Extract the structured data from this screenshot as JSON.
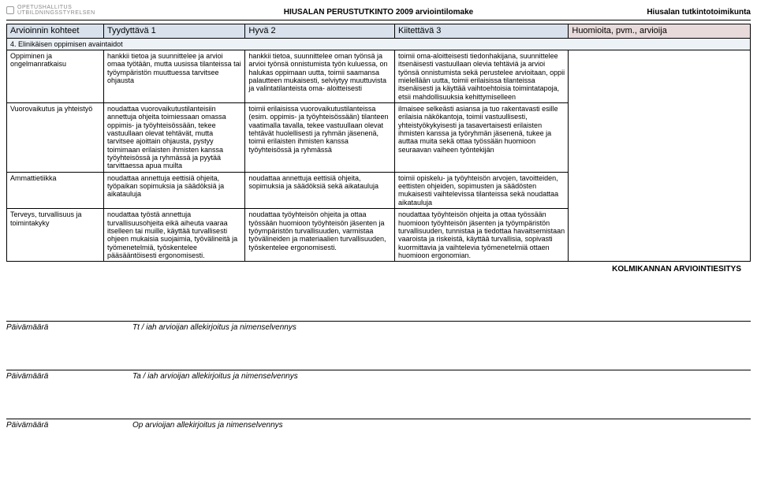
{
  "header": {
    "org1": "OPETUSHALLITUS",
    "org2": "UTBILDNINGSSTYRELSEN",
    "center": "HIUSALAN PERUSTUTKINTO 2009 arviointilomake",
    "right": "Hiusalan tutkintotoimikunta"
  },
  "columns": {
    "label": "Arvioinnin kohteet",
    "c1": "Tyydyttävä 1",
    "c2": "Hyvä 2",
    "c3": "Kiitettävä 3",
    "c4": "Huomioita, pvm., arvioija"
  },
  "section": "4. Elinikäisen oppimisen avaintaidot",
  "rows": [
    {
      "label": "Oppiminen ja ongelmanratkaisu",
      "c1": "hankkii tietoa ja suunnittelee ja arvioi omaa työtään, mutta uusissa tilanteissa tai työympäristön muuttuessa tarvitsee ohjausta",
      "c2": "hankkii tietoa, suunnittelee oman työnsä ja arvioi työnsä onnistumista työn kuluessa, on halukas oppimaan uutta, toimii saamansa palautteen mukaisesti, selviytyy muuttuvista ja valintatilanteista oma- aloitteisesti",
      "c3": "toimii oma-aloitteisesti tiedonhakijana, suunnittelee itsenäisesti vastuullaan olevia tehtäviä ja arvioi työnsä onnistumista sekä perustelee arvioitaan, oppii mielellään uutta, toimii erilaisissa tilanteissa itsenäisesti ja käyttää vaihtoehtoisia toimintatapoja, etsii mahdollisuuksia kehittymiselleen"
    },
    {
      "label": "Vuorovaikutus ja yhteistyö",
      "c1": "noudattaa vuorovaikutustilanteisiin annettuja ohjeita toimiessaan omassa oppimis- ja työyhteisössään, tekee vastuullaan olevat tehtävät, mutta tarvitsee ajoittain ohjausta, pystyy toimimaan erilaisten ihmisten kanssa työyhteisössä ja ryhmässä ja pyytää tarvittaessa apua muilta",
      "c2": "toimii erilaisissa vuorovaikutustilanteissa (esim. oppimis- ja työyhteisössään) tilanteen vaatimalla tavalla, tekee vastuullaan olevat tehtävät huolellisesti ja ryhmän jäsenenä, toimii erilaisten ihmisten kanssa työyhteisössä ja ryhmässä",
      "c3": "ilmaisee selkeästi asiansa ja tuo rakentavasti esille erilaisia näkökantoja, toimii vastuullisesti, yhteistyökykyisesti ja tasavertaisesti erilaisten ihmisten kanssa ja työryhmän jäsenenä, tukee ja auttaa muita sekä ottaa työssään huomioon seuraavan vaiheen työntekijän"
    },
    {
      "label": "Ammattietiikka",
      "c1": "noudattaa annettuja eettisiä ohjeita, työpaikan sopimuksia ja säädöksiä ja aikatauluja",
      "c2": "noudattaa annettuja eettisiä ohjeita, sopimuksia ja säädöksiä sekä aikatauluja",
      "c3": "toimii opiskelu- ja työyhteisön arvojen, tavoitteiden, eettisten ohjeiden, sopimusten ja säädösten mukaisesti vaihtelevissa tilanteissa sekä noudattaa aikatauluja"
    },
    {
      "label": "Terveys, turvallisuus ja toimintakyky",
      "c1": "noudattaa työstä annettuja turvallisuusohjeita eikä aiheuta vaaraa itselleen tai muille, käyttää turvallisesti ohjeen mukaisia suojaimia, työvälineitä ja työmenetelmiä, työskentelee pääsääntöisesti ergonomisesti.",
      "c2": "noudattaa työyhteisön ohjeita ja ottaa työssään huomioon työyhteisön jäsenten ja työympäristön turvallisuuden, varmistaa työvälineiden ja materiaalien turvallisuuden, työskentelee ergonomisesti.",
      "c3": "noudattaa työyhteisön ohjeita ja ottaa työssään huomioon työyhteisön jäsenten ja työympäristön turvallisuuden, tunnistaa ja tiedottaa havaitsemistaan vaaroista ja riskeistä, käyttää turvallisia, sopivasti kuormittavia ja vaihtelevia työmenetelmiä ottaen huomioon ergonomian."
    }
  ],
  "tripartite": "KOLMIKANNAN ARVIOINTIESITYS",
  "signatures": {
    "dateLabel": "Päivämäärä",
    "line1": "Tt / iah arvioijan allekirjoitus ja nimenselvennys",
    "line2": "Ta / iah arvioijan allekirjoitus ja nimenselvennys",
    "line3": "Op arvioijan allekirjoitus ja nimenselvennys"
  },
  "colors": {
    "headerBg": "#d9e2ec",
    "headerNoteBg": "#e8dada",
    "sectionBg": "#edf2f7",
    "border": "#000000",
    "text": "#000000"
  },
  "typography": {
    "baseFontSize": 9,
    "headerFontSize": 11,
    "titleFontSize": 10,
    "family": "Arial"
  }
}
